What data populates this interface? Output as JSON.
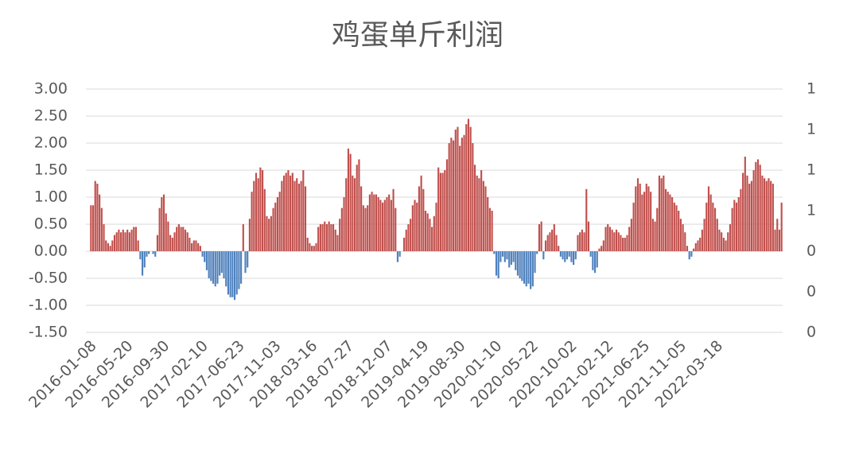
{
  "chart_data": {
    "type": "bar",
    "title": "鸡蛋单斤利润",
    "color": "#c0504d",
    "negative_color": "#4f81bd",
    "grid": true,
    "ylim": [
      -1.5,
      3.0
    ],
    "yticks": [
      {
        "value": -1.5,
        "label": "-1.50"
      },
      {
        "value": -1.0,
        "label": "-1.00"
      },
      {
        "value": -0.5,
        "label": "-0.50"
      },
      {
        "value": 0,
        "label": "0.00"
      },
      {
        "value": 0.5,
        "label": "0.50"
      },
      {
        "value": 1.0,
        "label": "1.00"
      },
      {
        "value": 1.5,
        "label": "1.50"
      },
      {
        "value": 2.0,
        "label": "2.00"
      },
      {
        "value": 2.5,
        "label": "2.50"
      },
      {
        "value": 3.0,
        "label": "3.00"
      }
    ],
    "y2lim": [
      0,
      1.2
    ],
    "y2ticks": [
      {
        "value": 0,
        "label": "0"
      },
      {
        "value": 0.2,
        "label": "0"
      },
      {
        "value": 0.4,
        "label": "0"
      },
      {
        "value": 0.6,
        "label": "1"
      },
      {
        "value": 0.8,
        "label": "1"
      },
      {
        "value": 1.0,
        "label": "1"
      },
      {
        "value": 1.2,
        "label": "1"
      }
    ],
    "categories": [
      "2016-01-08",
      null,
      null,
      null,
      null,
      null,
      null,
      null,
      null,
      null,
      null,
      null,
      null,
      null,
      null,
      null,
      null,
      "2016-05-20",
      null,
      null,
      null,
      null,
      null,
      null,
      null,
      null,
      null,
      null,
      null,
      null,
      null,
      null,
      null,
      null,
      "2016-09-30",
      null,
      null,
      null,
      null,
      null,
      null,
      null,
      null,
      null,
      null,
      null,
      null,
      null,
      null,
      null,
      null,
      null,
      "2017-02-10",
      null,
      null,
      null,
      null,
      null,
      null,
      null,
      null,
      null,
      null,
      null,
      null,
      null,
      null,
      null,
      null,
      "2017-06-23",
      null,
      null,
      null,
      null,
      null,
      null,
      null,
      null,
      null,
      null,
      null,
      null,
      null,
      null,
      null,
      null,
      "2017-11-03",
      null,
      null,
      null,
      null,
      null,
      null,
      null,
      null,
      null,
      null,
      null,
      null,
      null,
      null,
      null,
      null,
      "2018-03-16",
      null,
      null,
      null,
      null,
      null,
      null,
      null,
      null,
      null,
      null,
      null,
      null,
      null,
      null,
      null,
      null,
      "2018-07-27",
      null,
      null,
      null,
      null,
      null,
      null,
      null,
      null,
      null,
      null,
      null,
      null,
      null,
      null,
      null,
      null,
      null,
      "2018-12-07",
      null,
      null,
      null,
      null,
      null,
      null,
      null,
      null,
      null,
      null,
      null,
      null,
      null,
      null,
      null,
      null,
      "2019-04-19",
      null,
      null,
      null,
      null,
      null,
      null,
      null,
      null,
      null,
      null,
      null,
      null,
      null,
      null,
      null,
      null,
      "2019-08-30",
      null,
      null,
      null,
      null,
      null,
      null,
      null,
      null,
      null,
      null,
      null,
      null,
      null,
      null,
      null,
      null,
      "2020-01-10",
      null,
      null,
      null,
      null,
      null,
      null,
      null,
      null,
      null,
      null,
      null,
      null,
      null,
      null,
      null,
      null,
      "2020-05-22",
      null,
      null,
      null,
      null,
      null,
      null,
      null,
      null,
      null,
      null,
      null,
      null,
      null,
      null,
      null,
      null,
      null,
      "2020-10-02",
      null,
      null,
      null,
      null,
      null,
      null,
      null,
      null,
      null,
      null,
      null,
      null,
      null,
      null,
      null,
      null,
      "2021-02-12",
      null,
      null,
      null,
      null,
      null,
      null,
      null,
      null,
      null,
      null,
      null,
      null,
      null,
      null,
      null,
      null,
      "2021-06-25",
      null,
      null,
      null,
      null,
      null,
      null,
      null,
      null,
      null,
      null,
      null,
      null,
      null,
      null,
      null,
      null,
      "2021-11-05",
      null,
      null,
      null,
      null,
      null,
      null,
      null,
      null,
      null,
      null,
      null,
      null,
      null,
      null,
      null,
      null,
      "2022-03-18",
      null,
      null,
      null,
      null,
      null,
      null,
      null,
      null,
      null,
      null,
      null,
      null,
      null,
      null,
      null,
      null,
      null,
      null,
      null,
      null,
      null,
      null,
      null,
      null,
      null,
      null,
      null,
      null,
      null,
      null
    ],
    "values": [
      0.85,
      0.85,
      1.3,
      1.25,
      1.05,
      0.8,
      0.5,
      0.2,
      0.15,
      0.1,
      0.2,
      0.3,
      0.35,
      0.4,
      0.35,
      0.4,
      0.35,
      0.4,
      0.35,
      0.4,
      0.45,
      0.45,
      0.2,
      -0.15,
      -0.45,
      -0.3,
      -0.1,
      -0.05,
      0,
      -0.05,
      -0.1,
      0.3,
      0.8,
      1.0,
      1.05,
      0.7,
      0.55,
      0.3,
      0.25,
      0.35,
      0.45,
      0.5,
      0.45,
      0.45,
      0.4,
      0.35,
      0.25,
      0.15,
      0.2,
      0.2,
      0.15,
      0.1,
      -0.1,
      -0.2,
      -0.35,
      -0.5,
      -0.55,
      -0.6,
      -0.65,
      -0.6,
      -0.45,
      -0.4,
      -0.5,
      -0.65,
      -0.8,
      -0.85,
      -0.85,
      -0.9,
      -0.8,
      -0.7,
      -0.6,
      0.5,
      -0.4,
      -0.3,
      0.6,
      1.1,
      1.3,
      1.45,
      1.35,
      1.55,
      1.5,
      1.15,
      0.65,
      0.6,
      0.65,
      0.8,
      0.9,
      1.0,
      1.1,
      1.3,
      1.4,
      1.45,
      1.5,
      1.4,
      1.45,
      1.3,
      1.35,
      1.25,
      1.3,
      1.5,
      1.2,
      0.25,
      0.15,
      0.1,
      0.1,
      0.15,
      0.45,
      0.5,
      0.5,
      0.55,
      0.5,
      0.55,
      0.5,
      0.5,
      0.4,
      0.3,
      0.6,
      0.8,
      1.0,
      1.35,
      1.9,
      1.8,
      1.4,
      1.35,
      1.6,
      1.7,
      1.2,
      0.85,
      0.8,
      0.85,
      1.05,
      1.1,
      1.05,
      1.05,
      1.0,
      0.95,
      0.9,
      0.95,
      1.0,
      1.05,
      0.95,
      1.15,
      0.8,
      -0.2,
      -0.1,
      0,
      0.25,
      0.4,
      0.5,
      0.6,
      0.85,
      0.95,
      0.9,
      1.2,
      1.4,
      1.15,
      0.75,
      0.7,
      0.6,
      0.45,
      0.65,
      0.9,
      1.55,
      1.45,
      1.45,
      1.5,
      1.7,
      2.0,
      2.1,
      2.05,
      2.25,
      2.3,
      1.95,
      2.1,
      2.15,
      2.35,
      2.45,
      2.3,
      2.0,
      1.6,
      1.4,
      1.35,
      1.5,
      1.3,
      1.2,
      1.0,
      0.8,
      0.75,
      -0.05,
      -0.45,
      -0.5,
      -0.2,
      -0.1,
      -0.2,
      -0.15,
      -0.3,
      -0.25,
      -0.2,
      -0.35,
      -0.45,
      -0.5,
      -0.55,
      -0.6,
      -0.65,
      -0.6,
      -0.7,
      -0.65,
      -0.4,
      -0.05,
      0.5,
      0.55,
      -0.15,
      0.2,
      0.3,
      0.35,
      0.4,
      0.5,
      0.3,
      0.1,
      -0.1,
      -0.15,
      -0.2,
      -0.15,
      -0.1,
      -0.2,
      -0.25,
      -0.15,
      0.3,
      0.35,
      0.4,
      0.35,
      1.15,
      0.55,
      -0.1,
      -0.35,
      -0.4,
      -0.3,
      0.05,
      0.1,
      0.2,
      0.45,
      0.5,
      0.45,
      0.4,
      0.35,
      0.4,
      0.35,
      0.3,
      0.25,
      0.25,
      0.3,
      0.45,
      0.6,
      0.9,
      1.2,
      1.35,
      1.25,
      1.05,
      1.1,
      1.25,
      1.2,
      1.1,
      0.6,
      0.55,
      0.8,
      1.4,
      1.35,
      1.4,
      1.15,
      1.1,
      1.05,
      1.0,
      0.9,
      0.85,
      0.75,
      0.6,
      0.5,
      0.35,
      0.1,
      -0.15,
      -0.1,
      0.05,
      0.15,
      0.2,
      0.25,
      0.4,
      0.6,
      0.9,
      1.2,
      1.05,
      0.9,
      0.8,
      0.6,
      0.4,
      0.35,
      0.25,
      0.2,
      0.35,
      0.5,
      0.8,
      0.95,
      0.9,
      1.0,
      1.15,
      1.45,
      1.75,
      1.4,
      1.25,
      1.3,
      1.5,
      1.65,
      1.7,
      1.6,
      1.4,
      1.35,
      1.3,
      1.35,
      1.3,
      1.25,
      0.4,
      0.6,
      0.4,
      0.9
    ]
  }
}
